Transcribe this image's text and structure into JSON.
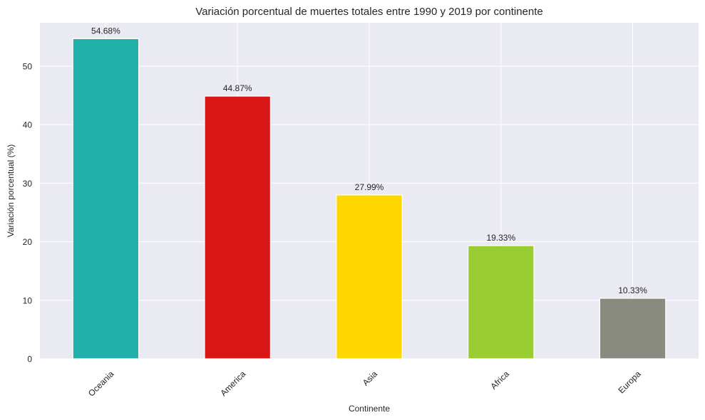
{
  "chart_data": {
    "type": "bar",
    "title": "Variación porcentual de muertes totales entre 1990 y 2019 por continente",
    "xlabel": "Continente",
    "ylabel": "Variación porcentual (%)",
    "categories": [
      "Oceania",
      "America",
      "Asia",
      "Africa",
      "Europa"
    ],
    "values": [
      54.68,
      44.87,
      27.99,
      19.33,
      10.33
    ],
    "data_labels": [
      "54.68%",
      "44.87%",
      "27.99%",
      "19.33%",
      "10.33%"
    ],
    "colors": [
      "#20b2aa",
      "#d91616",
      "#ffd700",
      "#9acd32",
      "#898b80"
    ],
    "ylim": [
      0,
      57.4
    ],
    "yticks": [
      0,
      10,
      20,
      30,
      40,
      50
    ],
    "ytick_labels": [
      "0",
      "10",
      "20",
      "30",
      "40",
      "50"
    ],
    "grid": true,
    "plot_background": "#eaeaf2",
    "xtick_rotation": 45
  }
}
